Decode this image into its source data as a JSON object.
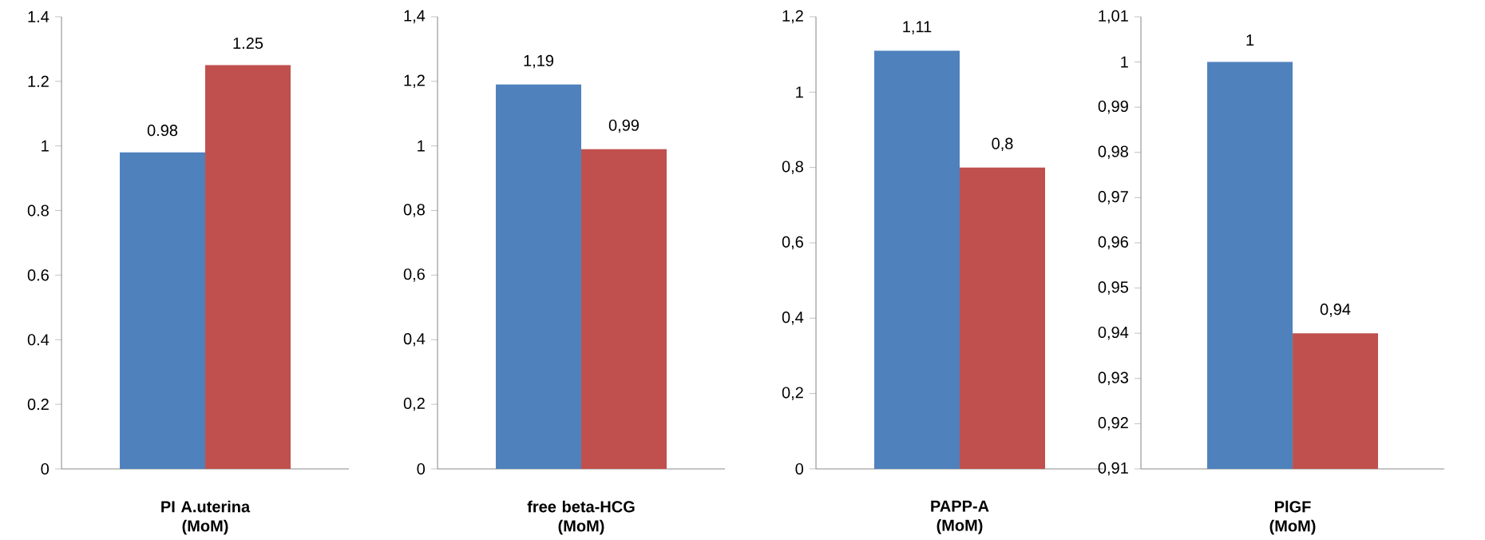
{
  "chart_data": [
    {
      "type": "bar",
      "xlabel": "PI A.uterina (MoM)",
      "categories": [
        null
      ],
      "ylim": [
        0,
        1.4
      ],
      "yticks": [
        0,
        0.2,
        0.4,
        0.6,
        0.8,
        1,
        1.2,
        1.4
      ],
      "grid": false,
      "series": [
        {
          "color": "#4f81bd",
          "values": [
            0.98
          ],
          "value_labels": [
            "0.98"
          ]
        },
        {
          "color": "#c0504d",
          "values": [
            1.25
          ],
          "value_labels": [
            "1.25"
          ]
        }
      ]
    },
    {
      "type": "bar",
      "xlabel": "free beta-HCG (MoM)",
      "categories": [
        null
      ],
      "ylim": [
        0,
        1.4
      ],
      "yticks": [
        0,
        {
          "value": 0.2,
          "label": "0,2"
        },
        {
          "value": 0.4,
          "label": "0,4"
        },
        {
          "value": 0.6,
          "label": "0,6"
        },
        {
          "value": 0.8,
          "label": "0,8"
        },
        1,
        {
          "value": 1.2,
          "label": "1,2"
        },
        {
          "value": 1.4,
          "label": "1,4"
        }
      ],
      "grid": false,
      "series": [
        {
          "color": "#4f81bd",
          "values": [
            1.19
          ],
          "value_labels": [
            "1,19"
          ]
        },
        {
          "color": "#c0504d",
          "values": [
            0.99
          ],
          "value_labels": [
            "0,99"
          ]
        }
      ]
    },
    {
      "type": "bar",
      "xlabel": "PAPP-A (MoM)",
      "categories": [
        null
      ],
      "ylim": [
        0,
        1.2
      ],
      "yticks": [
        0,
        {
          "value": 0.2,
          "label": "0,2"
        },
        {
          "value": 0.4,
          "label": "0,4"
        },
        {
          "value": 0.6,
          "label": "0,6"
        },
        {
          "value": 0.8,
          "label": "0,8"
        },
        1,
        {
          "value": 1.2,
          "label": "1,2"
        }
      ],
      "grid": false,
      "series": [
        {
          "color": "#4f81bd",
          "values": [
            1.11
          ],
          "value_labels": [
            "1,11"
          ]
        },
        {
          "color": "#c0504d",
          "values": [
            0.8
          ],
          "value_labels": [
            "0,8"
          ]
        }
      ]
    },
    {
      "type": "bar",
      "xlabel": "PlGF (MoM)",
      "categories": [
        null
      ],
      "ylim": [
        0.91,
        1.01
      ],
      "yticks": [
        {
          "value": 0.91,
          "label": "0,91"
        },
        {
          "value": 0.92,
          "label": "0,92"
        },
        {
          "value": 0.93,
          "label": "0,93"
        },
        {
          "value": 0.94,
          "label": "0,94"
        },
        {
          "value": 0.95,
          "label": "0,95"
        },
        {
          "value": 0.96,
          "label": "0,96"
        },
        {
          "value": 0.97,
          "label": "0,97"
        },
        {
          "value": 0.98,
          "label": "0,98"
        },
        {
          "value": 0.99,
          "label": "0,99"
        },
        1,
        {
          "value": 1.01,
          "label": "1,01"
        }
      ],
      "grid": false,
      "series": [
        {
          "color": "#4f81bd",
          "values": [
            1
          ],
          "value_labels": [
            "1"
          ]
        },
        {
          "color": "#c0504d",
          "values": [
            0.94
          ],
          "value_labels": [
            "0,94"
          ]
        }
      ]
    }
  ]
}
